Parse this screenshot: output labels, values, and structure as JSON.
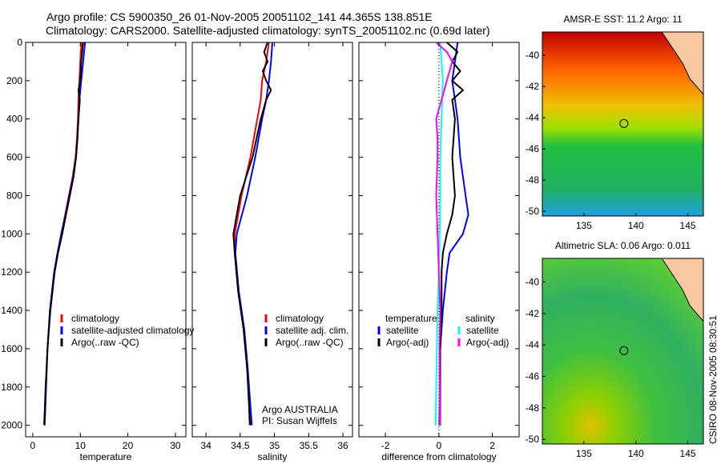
{
  "title_line1": "Argo profile: CS 5900350_26 01-Nov-2005 20051102_141 44.365S 138.851E",
  "title_line2": "Climatology: CARS2000. Satellite-adjusted climatology: synTS_20051102.nc (0.69d later)",
  "side_label": "CSIRO 08-Nov-2005 08:30:51",
  "colors": {
    "clim": "#ff0000",
    "sat": "#0000ff",
    "argo": "#000000",
    "sal_sat": "#00ffff",
    "sal_argo": "#ff00ff"
  },
  "chart_data": [
    {
      "type": "line",
      "xlabel": "temperature",
      "ylabel": "",
      "xlim": [
        -1.5,
        32.2
      ],
      "ylim": [
        2060,
        0
      ],
      "xticks": [
        0,
        10,
        20,
        30
      ],
      "yticks": [
        0,
        200,
        400,
        600,
        800,
        1000,
        1200,
        1400,
        1600,
        1800,
        2000
      ],
      "legend": [
        "climatology",
        "satellite-adjusted climatology",
        "Argo(..raw -QC)"
      ],
      "series": [
        {
          "name": "climatology",
          "color": "clim",
          "depth": [
            0,
            50,
            100,
            200,
            300,
            400,
            500,
            600,
            700,
            800,
            900,
            1000,
            1100,
            1200,
            1400,
            1600,
            1800,
            2000
          ],
          "values": [
            10.3,
            10.1,
            10.0,
            9.8,
            9.6,
            9.5,
            9.3,
            9.0,
            8.4,
            7.6,
            6.8,
            6.0,
            5.2,
            4.5,
            3.6,
            3.1,
            2.8,
            2.5
          ]
        },
        {
          "name": "satellite",
          "color": "sat",
          "depth": [
            0,
            50,
            100,
            200,
            300,
            400,
            500,
            600,
            700,
            800,
            900,
            1000,
            1100,
            1200,
            1400,
            1600,
            1800,
            2000
          ],
          "values": [
            11.0,
            10.8,
            10.6,
            10.2,
            9.8,
            9.6,
            9.4,
            9.1,
            8.5,
            7.7,
            6.9,
            6.0,
            5.2,
            4.5,
            3.6,
            3.1,
            2.8,
            2.5
          ]
        },
        {
          "name": "argo",
          "color": "argo",
          "depth": [
            0,
            50,
            100,
            200,
            250,
            300,
            400,
            500,
            600,
            700,
            800,
            900,
            1000,
            1100,
            1200,
            1400,
            1600,
            1800,
            2000
          ],
          "values": [
            10.6,
            10.4,
            10.2,
            10.0,
            9.6,
            9.9,
            9.6,
            9.4,
            9.1,
            8.6,
            7.8,
            7.0,
            6.2,
            5.3,
            4.6,
            3.7,
            3.1,
            2.7,
            2.4
          ]
        }
      ]
    },
    {
      "type": "line",
      "xlabel": "salinity",
      "xlim": [
        33.8,
        36.14
      ],
      "ylim": [
        2060,
        0
      ],
      "xticks": [
        34,
        34.5,
        35,
        35.5,
        36
      ],
      "legend": [
        "climatology",
        "satellite adj. clim.",
        "Argo(..raw -QC)"
      ],
      "annotation": [
        "Argo AUSTRALIA",
        "PI: Susan Wijffels"
      ],
      "series": [
        {
          "name": "climatology",
          "color": "clim",
          "depth": [
            0,
            100,
            200,
            300,
            400,
            600,
            800,
            1000,
            1100,
            1300,
            1500,
            1700,
            1900,
            2000
          ],
          "values": [
            34.92,
            34.88,
            34.82,
            34.8,
            34.75,
            34.65,
            34.52,
            34.42,
            34.42,
            34.47,
            34.55,
            34.6,
            34.64,
            34.66
          ]
        },
        {
          "name": "satellite",
          "color": "sat",
          "depth": [
            0,
            100,
            200,
            300,
            400,
            600,
            800,
            1000,
            1100,
            1300,
            1500,
            1700,
            1900,
            2000
          ],
          "values": [
            34.97,
            34.95,
            34.92,
            34.88,
            34.82,
            34.72,
            34.6,
            34.45,
            34.43,
            34.48,
            34.56,
            34.61,
            34.65,
            34.67
          ]
        },
        {
          "name": "argo",
          "color": "argo",
          "depth": [
            0,
            50,
            100,
            150,
            200,
            250,
            300,
            400,
            600,
            800,
            1000,
            1100,
            1300,
            1500,
            1700,
            1900,
            2000
          ],
          "values": [
            34.9,
            34.85,
            34.9,
            34.83,
            34.88,
            34.95,
            34.88,
            34.8,
            34.68,
            34.5,
            34.4,
            34.42,
            34.47,
            34.55,
            34.6,
            34.63,
            34.64
          ]
        }
      ]
    },
    {
      "type": "line",
      "xlabel": "difference from climatology",
      "xlim": [
        -2.99,
        3.0
      ],
      "ylim": [
        2060,
        0
      ],
      "xticks": [
        -2,
        0,
        2
      ],
      "legend_titles": [
        "temperature",
        "salinity"
      ],
      "legend": [
        "satellite",
        "Argo(-adj)",
        "satellite",
        "Argo(-adj)"
      ],
      "series": [
        {
          "name": "temperature satellite",
          "color": "sat",
          "depth": [
            0,
            100,
            200,
            300,
            400,
            600,
            800,
            900,
            1000,
            1100,
            1200,
            1400,
            1600,
            1800,
            2000
          ],
          "values": [
            0.7,
            0.6,
            0.5,
            0.6,
            0.7,
            0.8,
            1.0,
            1.1,
            0.9,
            0.4,
            0.3,
            0.15,
            0.05,
            0.05,
            0.05
          ]
        },
        {
          "name": "temperature argo",
          "color": "argo",
          "depth": [
            0,
            50,
            100,
            150,
            200,
            250,
            300,
            400,
            600,
            800,
            900,
            1000,
            1100,
            1200,
            1400,
            1600,
            2000
          ],
          "values": [
            0.3,
            0.7,
            0.5,
            0.8,
            0.5,
            0.9,
            0.5,
            0.6,
            0.5,
            0.6,
            0.5,
            0.3,
            0.15,
            0.1,
            0.1,
            0.05,
            0.02
          ]
        },
        {
          "name": "salinity satellite",
          "color": "sal_sat",
          "depth": [
            0,
            100,
            200,
            400,
            600,
            800,
            1000,
            1200,
            1400,
            1600,
            1800,
            2000
          ],
          "values": [
            0.05,
            0.1,
            0.15,
            0.1,
            0.05,
            0.05,
            0.03,
            0.0,
            -0.05,
            -0.08,
            -0.1,
            -0.12
          ]
        },
        {
          "name": "salinity argo",
          "color": "sal_argo",
          "depth": [
            0,
            50,
            100,
            200,
            300,
            400,
            500,
            600,
            800,
            1000,
            1200,
            1400,
            1600,
            1800,
            2000
          ],
          "values": [
            -0.1,
            0.3,
            0.5,
            0.3,
            0.1,
            -0.1,
            -0.05,
            -0.05,
            -0.1,
            -0.05,
            0.0,
            0.05,
            0.02,
            0.03,
            0.04
          ]
        }
      ]
    }
  ],
  "maps": [
    {
      "title": "AMSR-E SST: 11.2 Argo: 11",
      "lon_ticks": [
        135,
        140,
        145
      ],
      "lat_ticks": [
        -40,
        -42,
        -44,
        -46,
        -48,
        -50
      ],
      "lonlim": [
        131,
        146.5
      ],
      "latlim": [
        -38.5,
        -50.3
      ],
      "profile": [
        138.851,
        -44.365
      ]
    },
    {
      "title": "Altimetric SLA: 0.06 Argo: 0.011",
      "lon_ticks": [
        135,
        140,
        145
      ],
      "lat_ticks": [
        -40,
        -42,
        -44,
        -46,
        -48,
        -50
      ],
      "lonlim": [
        131,
        146.5
      ],
      "latlim": [
        -38.5,
        -50.3
      ],
      "profile": [
        138.851,
        -44.365
      ]
    }
  ]
}
